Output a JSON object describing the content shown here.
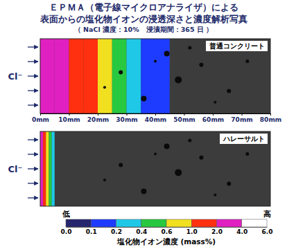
{
  "title": "ＥＰＭＡ（電子線マイクロアナライザ）による",
  "subtitle": "表面からの塩化物イオンの浸透深さと濃度解析写真",
  "note": "（ NaCl 濃度：10%　浸漬期間：365 日 ）",
  "chart_data": [
    {
      "type": "heatmap",
      "title": "普通コンクリート",
      "ylabel": "Cl⁻",
      "bins": [
        0,
        5,
        10,
        15,
        20,
        25,
        30,
        35,
        40,
        45
      ],
      "values": [
        3.0,
        2.5,
        1.5,
        1.2,
        0.8,
        0.5,
        0.3,
        0.15,
        0.12
      ],
      "xlim": [
        0,
        80
      ],
      "xticks": [
        {
          "value": 0,
          "label": "0mm"
        },
        {
          "value": 10,
          "label": "10mm"
        },
        {
          "value": 20,
          "label": "20mm"
        },
        {
          "value": 30,
          "label": "30mm"
        },
        {
          "value": 40,
          "label": "40mm"
        },
        {
          "value": 50,
          "label": "50mm"
        },
        {
          "value": 60,
          "label": "60mm"
        },
        {
          "value": 70,
          "label": "70mm"
        },
        {
          "value": 80,
          "label": "80mm"
        }
      ]
    },
    {
      "type": "heatmap",
      "title": "ハレーサルト",
      "ylabel": "Cl⁻",
      "bins": [
        0,
        1,
        2,
        3,
        4,
        5
      ],
      "values": [
        3.0,
        1.5,
        0.8,
        0.5,
        0.3
      ],
      "xlim": [
        0,
        80
      ],
      "tick_labels": false
    }
  ],
  "colorbar": {
    "title": "塩化物イオン濃度 (mass%)",
    "low": "低",
    "high": "高",
    "ticks": [
      {
        "value": 0,
        "label": "0.0"
      },
      0.1,
      0.2,
      0.4,
      0.6,
      {
        "value": 1,
        "label": "1.0"
      },
      {
        "value": 2,
        "label": "2.0"
      },
      {
        "value": 4,
        "label": "4.0"
      },
      {
        "value": 6,
        "label": "6.0"
      }
    ],
    "colors": [
      "#26266e",
      "#1e3cff",
      "#20c8e8",
      "#28c840",
      "#f0e020",
      "#ff3010",
      "#e020c0",
      "#ffffff"
    ]
  }
}
